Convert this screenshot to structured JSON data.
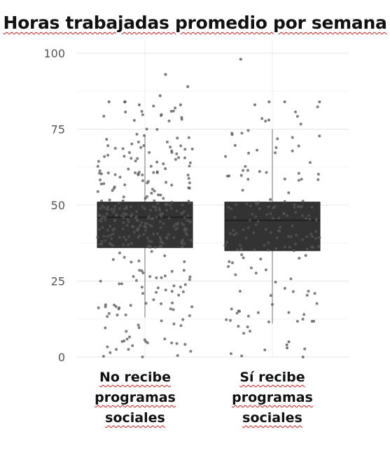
{
  "title": "Horas trabajadas promedio por semana",
  "chart_data": {
    "type": "boxplot",
    "title": "Horas trabajadas promedio por semana",
    "categories": [
      "No recibe programas sociales",
      "Sí recibe programas sociales"
    ],
    "category_lines": [
      [
        "No recibe",
        "programas",
        "sociales"
      ],
      [
        "Sí recibe",
        "programas",
        "sociales"
      ]
    ],
    "ylim": [
      0,
      100
    ],
    "yticks": [
      0,
      25,
      50,
      75,
      100
    ],
    "grid": true,
    "boxes": [
      {
        "category": "No recibe programas sociales",
        "q1": 36,
        "median": 46,
        "q3": 51,
        "whisker_low": 13,
        "whisker_high": 73
      },
      {
        "category": "Sí recibe programas sociales",
        "q1": 35,
        "median": 45,
        "q3": 51,
        "whisker_low": 11,
        "whisker_high": 75
      }
    ],
    "box_color": "#333333",
    "point_color": "#555555",
    "outliers": [
      {
        "category": 0,
        "values": [
          93,
          89,
          86,
          84,
          84,
          84,
          83,
          83
        ]
      },
      {
        "category": 1,
        "values": [
          98,
          84,
          84,
          84,
          83,
          78,
          0,
          3,
          4,
          5
        ]
      }
    ],
    "points_approx_per_group": [
      360,
      170
    ]
  }
}
